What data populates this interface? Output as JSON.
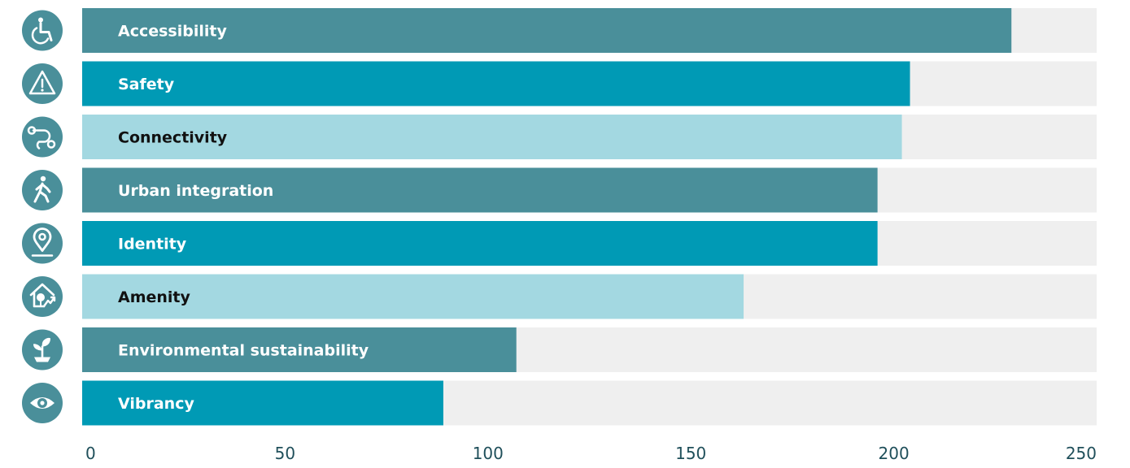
{
  "chart_data": {
    "type": "bar",
    "orientation": "horizontal",
    "categories": [
      "Accessibility",
      "Safety",
      "Connectivity",
      "Urban integration",
      "Identity",
      "Amenity",
      "Environmental sustainability",
      "Vibrancy"
    ],
    "values": [
      229,
      204,
      202,
      196,
      196,
      163,
      107,
      89
    ],
    "xlim": [
      0,
      250
    ],
    "ticks": [
      0,
      50,
      100,
      150,
      200,
      250
    ],
    "tick_labels": [
      "0",
      "50",
      "100",
      "150",
      "200",
      "250"
    ],
    "grid": false,
    "title": "",
    "xlabel": "",
    "ylabel": ""
  },
  "icons": [
    "wheelchair-icon",
    "warning-icon",
    "route-icon",
    "pedestrian-icon",
    "location-pin-icon",
    "house-tree-icon",
    "sprout-icon",
    "eye-icon"
  ],
  "colors": {
    "bar_fills": [
      "#4a8f9a",
      "#009ab5",
      "#a3d8e1",
      "#4a8f9a",
      "#009ab5",
      "#a3d8e1",
      "#4a8f9a",
      "#009ab5"
    ],
    "label_colors": [
      "#ffffff",
      "#ffffff",
      "#111111",
      "#ffffff",
      "#ffffff",
      "#111111",
      "#ffffff",
      "#ffffff"
    ],
    "track": "#efefef",
    "icon_circle": "#4a8f9a",
    "axis_text": "#1f4f5a"
  }
}
